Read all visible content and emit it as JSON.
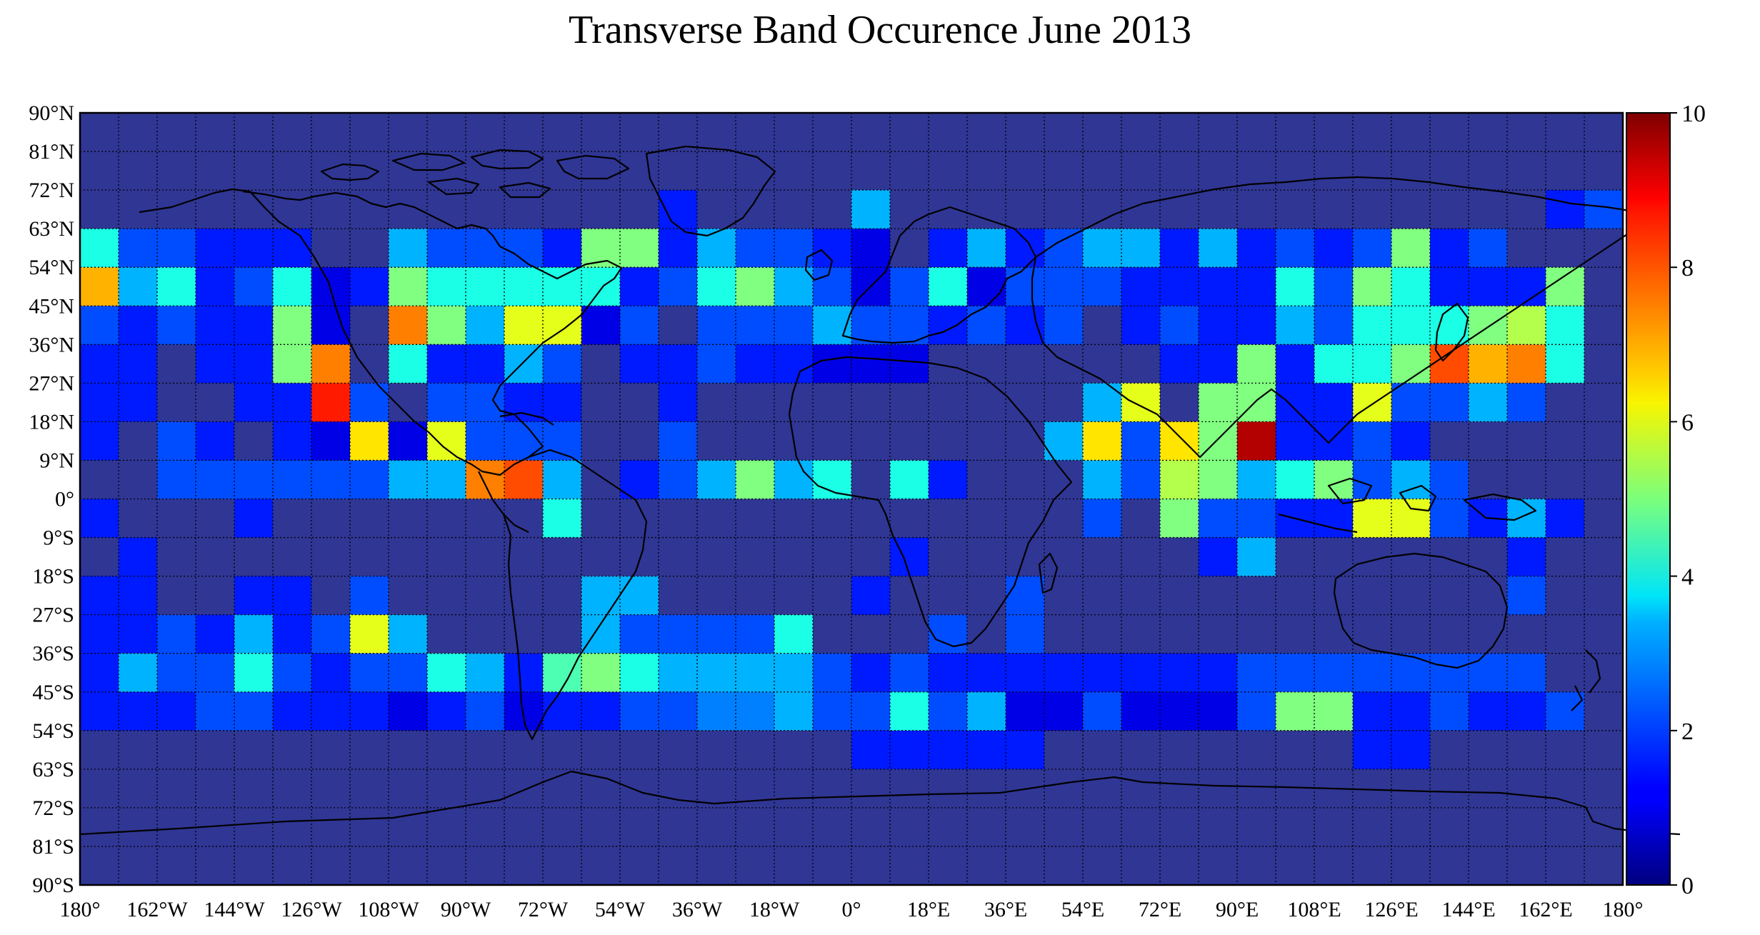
{
  "chart_data": {
    "type": "heatmap",
    "title": "Transverse Band Occurence June 2013",
    "xlabel": "",
    "ylabel": "",
    "xlim": [
      -180,
      180
    ],
    "ylim": [
      -90,
      90
    ],
    "cell_size_deg": 9,
    "x_ticks": [
      {
        "value": -180,
        "label": "180°"
      },
      {
        "value": -162,
        "label": "162°W"
      },
      {
        "value": -144,
        "label": "144°W"
      },
      {
        "value": -126,
        "label": "126°W"
      },
      {
        "value": -108,
        "label": "108°W"
      },
      {
        "value": -90,
        "label": "90°W"
      },
      {
        "value": -72,
        "label": "72°W"
      },
      {
        "value": -54,
        "label": "54°W"
      },
      {
        "value": -36,
        "label": "36°W"
      },
      {
        "value": -18,
        "label": "18°W"
      },
      {
        "value": 0,
        "label": "0°"
      },
      {
        "value": 18,
        "label": "18°E"
      },
      {
        "value": 36,
        "label": "36°E"
      },
      {
        "value": 54,
        "label": "54°E"
      },
      {
        "value": 72,
        "label": "72°E"
      },
      {
        "value": 90,
        "label": "90°E"
      },
      {
        "value": 108,
        "label": "108°E"
      },
      {
        "value": 126,
        "label": "126°E"
      },
      {
        "value": 144,
        "label": "144°E"
      },
      {
        "value": 162,
        "label": "162°E"
      },
      {
        "value": 180,
        "label": "180°"
      }
    ],
    "y_ticks": [
      {
        "value": 90,
        "label": "90°N"
      },
      {
        "value": 81,
        "label": "81°N"
      },
      {
        "value": 72,
        "label": "72°N"
      },
      {
        "value": 63,
        "label": "63°N"
      },
      {
        "value": 54,
        "label": "54°N"
      },
      {
        "value": 45,
        "label": "45°N"
      },
      {
        "value": 36,
        "label": "36°N"
      },
      {
        "value": 27,
        "label": "27°N"
      },
      {
        "value": 18,
        "label": "18°N"
      },
      {
        "value": 9,
        "label": "9°N"
      },
      {
        "value": 0,
        "label": "0°"
      },
      {
        "value": -9,
        "label": "9°S"
      },
      {
        "value": -18,
        "label": "18°S"
      },
      {
        "value": -27,
        "label": "27°S"
      },
      {
        "value": -36,
        "label": "36°S"
      },
      {
        "value": -45,
        "label": "45°S"
      },
      {
        "value": -54,
        "label": "54°S"
      },
      {
        "value": -63,
        "label": "63°S"
      },
      {
        "value": -72,
        "label": "72°S"
      },
      {
        "value": -81,
        "label": "81°S"
      },
      {
        "value": -90,
        "label": "90°S"
      }
    ],
    "grid": true,
    "colorbar": {
      "min": 0,
      "max": 10,
      "ticks": [
        0,
        2,
        4,
        6,
        8,
        10
      ],
      "colormap": "jet",
      "position": "right"
    },
    "row_start_lats": [
      90,
      81,
      72,
      63,
      54,
      45,
      36,
      27,
      18,
      9,
      0,
      -9,
      -18,
      -27,
      -36,
      -45,
      -54,
      -63,
      -72,
      -81
    ],
    "values": [
      [
        0,
        0,
        0,
        0,
        0,
        0,
        0,
        0,
        0,
        0,
        0,
        0,
        0,
        0,
        0,
        0,
        0,
        0,
        0,
        0,
        0,
        0,
        0,
        0,
        0,
        0,
        0,
        0,
        0,
        0,
        0,
        0,
        0,
        0,
        0,
        0,
        0,
        0,
        0,
        0,
        0,
        0,
        0,
        0,
        0,
        0,
        0,
        0,
        0,
        0,
        0,
        0,
        0,
        0,
        0,
        0,
        0,
        0,
        0,
        0,
        0,
        0,
        0,
        0,
        0,
        0,
        0,
        0,
        0,
        0,
        0,
        0,
        0,
        0,
        0,
        0,
        0,
        0,
        0,
        0
      ],
      [
        0,
        0,
        0,
        0,
        0,
        0,
        0,
        0,
        0,
        0,
        0,
        0,
        0,
        0,
        0,
        0,
        0,
        0,
        0,
        0,
        0,
        0,
        0,
        0,
        0,
        0,
        0,
        0,
        0,
        0,
        0,
        0,
        0,
        0,
        0,
        0,
        0,
        0,
        0,
        0,
        0,
        0,
        0,
        0,
        0,
        0,
        0,
        0,
        0,
        0,
        0,
        0,
        0,
        0,
        0,
        0,
        0,
        0,
        0,
        0,
        0,
        0,
        0,
        0,
        0,
        0,
        0,
        0,
        0,
        0,
        0,
        0,
        0,
        0,
        0,
        0,
        0,
        0,
        0,
        0
      ],
      [
        0,
        0,
        0,
        0,
        0,
        0,
        0,
        0,
        0,
        0,
        0,
        0,
        0,
        0,
        0,
        1.5,
        0,
        0,
        0,
        0,
        3,
        0,
        0,
        0,
        0,
        0,
        0,
        0,
        0,
        0,
        0,
        0,
        0,
        0,
        0,
        0,
        0,
        0,
        1.5,
        2,
        0
      ],
      [
        4,
        2,
        2,
        1.5,
        1.5,
        1.5,
        0,
        0,
        3,
        2,
        2,
        2,
        1.5,
        5,
        5,
        1.5,
        3,
        2,
        2,
        1.5,
        1,
        0,
        1.5,
        3,
        1.5,
        2,
        3,
        3,
        1.5,
        3,
        1.5,
        2,
        1.5,
        2,
        5,
        1.5,
        2
      ],
      [
        7,
        3,
        4,
        1.5,
        2,
        4,
        1,
        1.5,
        5,
        4,
        4,
        4,
        4,
        4,
        1.5,
        2,
        4,
        5,
        3,
        2,
        1,
        2,
        4,
        1,
        2,
        2,
        2,
        1.5,
        1.5,
        1.5,
        1.5,
        4,
        2,
        5,
        4,
        1.5,
        1.5,
        1.5,
        5
      ],
      [
        2,
        1.5,
        2,
        1.5,
        1.5,
        5,
        1,
        0,
        7.5,
        5,
        3,
        6,
        6,
        1,
        2,
        0,
        2,
        2,
        2,
        3,
        2,
        2,
        1.5,
        2,
        1.5,
        2,
        0,
        1.5,
        2,
        1.5,
        1.5,
        3,
        2,
        4,
        4,
        4,
        5,
        5.5,
        4
      ],
      [
        1.5,
        1.5,
        0,
        1.5,
        1.5,
        5,
        7.5,
        0,
        4,
        1.5,
        1.5,
        3,
        2,
        0,
        1.5,
        1.5,
        2,
        1.5,
        1.5,
        1,
        1,
        1,
        0,
        0,
        0,
        0,
        0,
        0,
        1.5,
        1.5,
        5,
        1.5,
        4,
        4,
        5,
        8,
        7,
        7.5,
        4
      ],
      [
        1.5,
        1.5,
        0,
        0,
        1.5,
        1.5,
        8.5,
        2,
        0,
        2,
        2,
        1.5,
        1.5,
        0,
        0,
        1.5,
        0,
        0,
        0,
        0,
        0,
        0,
        0,
        0,
        0,
        0,
        3,
        6,
        0,
        5,
        5,
        1.5,
        1.5,
        6,
        2,
        2,
        3,
        2
      ],
      [
        1.5,
        0,
        2,
        1.5,
        0,
        1.5,
        1,
        6.5,
        1,
        6,
        2,
        2,
        2,
        0,
        0,
        2,
        0,
        0,
        0,
        0,
        0,
        0,
        0,
        0,
        0,
        3,
        6.5,
        2,
        6.5,
        5,
        9.5,
        1.5,
        1.5,
        2,
        1.5,
        0
      ],
      [
        0,
        0,
        2,
        2,
        2,
        2,
        2,
        2,
        3,
        3,
        7.5,
        8,
        3,
        0,
        1.5,
        2,
        3,
        5,
        3,
        4,
        0,
        4,
        1.5,
        0,
        0,
        0,
        3,
        2,
        5.5,
        5,
        3,
        4,
        5,
        2,
        3,
        2,
        0
      ],
      [
        1.5,
        0,
        0,
        0,
        1.5,
        0,
        0,
        0,
        0,
        0,
        0,
        0,
        4,
        0,
        0,
        0,
        0,
        0,
        0,
        0,
        0,
        0,
        0,
        0,
        0,
        0,
        2,
        0,
        5,
        2,
        2,
        1.5,
        1.5,
        6,
        6,
        2,
        1.5,
        3,
        1.5
      ],
      [
        0,
        1.5,
        0,
        0,
        0,
        0,
        0,
        0,
        0,
        0,
        0,
        0,
        0,
        0,
        0,
        0,
        0,
        0,
        0,
        0,
        0,
        1.5,
        0,
        0,
        0,
        0,
        0,
        0,
        0,
        1.5,
        3,
        0,
        0,
        0,
        0,
        0,
        0,
        1.5
      ],
      [
        1.5,
        1.5,
        0,
        0,
        1.5,
        1.5,
        0,
        2,
        0,
        0,
        0,
        0,
        0,
        3,
        3,
        0,
        0,
        0,
        0,
        0,
        1.5,
        0,
        0,
        0,
        2,
        0,
        0,
        0,
        0,
        0,
        0,
        0,
        0,
        0,
        0,
        0,
        0,
        2
      ],
      [
        1.5,
        1.5,
        2,
        1.5,
        3,
        1.5,
        2,
        6,
        3,
        0,
        0,
        0,
        0,
        3,
        2,
        2,
        2,
        2,
        4,
        0,
        0,
        0,
        2,
        0,
        2,
        0,
        0,
        0,
        0,
        0,
        0,
        0,
        0,
        0,
        0,
        0,
        0,
        0
      ],
      [
        1.5,
        3,
        2,
        2,
        4,
        2,
        1.5,
        2,
        2,
        4,
        3,
        1.5,
        4.5,
        5,
        4,
        3,
        3,
        3,
        3,
        2,
        1.5,
        2,
        1.5,
        1.5,
        1.5,
        1.5,
        1.5,
        1.5,
        1.5,
        1.5,
        2,
        2,
        2,
        2,
        2,
        2,
        2,
        2
      ],
      [
        1.5,
        1.5,
        1.5,
        2,
        2,
        1.5,
        1.5,
        1.5,
        1,
        1.5,
        2,
        1,
        1.5,
        1.5,
        2,
        2,
        2.5,
        2.5,
        3,
        2,
        2,
        4,
        2,
        3,
        1,
        1,
        2,
        1,
        1,
        1,
        2,
        5,
        5,
        1.5,
        1.5,
        2,
        1.5,
        1.5,
        2
      ],
      [
        0,
        0,
        0,
        0,
        0,
        0,
        0,
        0,
        0,
        0,
        0,
        0,
        0,
        0,
        0,
        0,
        0,
        0,
        0,
        0,
        1.5,
        1.5,
        1.5,
        1.5,
        1.5,
        0,
        0,
        0,
        0,
        0,
        0,
        0,
        0,
        1.5,
        1.5,
        0,
        0,
        0,
        0
      ],
      [
        0,
        0,
        0,
        0,
        0,
        0,
        0,
        0,
        0,
        0,
        0,
        0,
        0,
        0,
        0,
        0,
        0,
        0,
        0,
        0,
        0,
        0,
        0,
        0,
        0,
        0,
        0,
        0,
        0,
        0,
        0,
        0,
        0,
        0,
        0,
        0,
        0,
        0,
        0,
        0
      ],
      [
        0,
        0,
        0,
        0,
        0,
        0,
        0,
        0,
        0,
        0,
        0,
        0,
        0,
        0,
        0,
        0,
        0,
        0,
        0,
        0,
        0,
        0,
        0,
        0,
        0,
        0,
        0,
        0,
        0,
        0,
        0,
        0,
        0,
        0,
        0,
        0,
        0,
        0,
        0,
        0
      ],
      [
        0,
        0,
        0,
        0,
        0,
        0,
        0,
        0,
        0,
        0,
        0,
        0,
        0,
        0,
        0,
        0,
        0,
        0,
        0,
        0,
        0,
        0,
        0,
        0,
        0,
        0,
        0,
        0,
        0,
        0,
        0,
        0,
        0,
        0,
        0,
        0,
        0,
        0,
        0,
        0
      ]
    ]
  }
}
